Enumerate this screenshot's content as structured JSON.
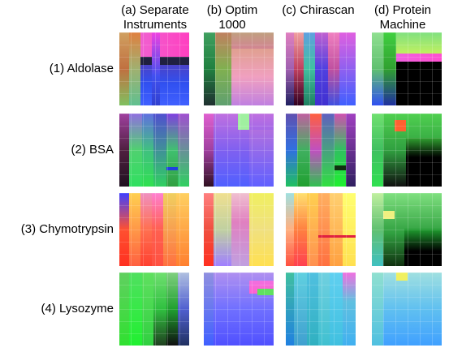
{
  "columns": [
    {
      "label_line1": "(a) Separate",
      "label_line2": "Instruments"
    },
    {
      "label_line1": "(b) Optim",
      "label_line2": "1000"
    },
    {
      "label_line1": "(c) Chirascan",
      "label_line2": ""
    },
    {
      "label_line1": "(d) Protein",
      "label_line2": "Machine"
    }
  ],
  "rows": [
    {
      "label": "(1) Aldolase"
    },
    {
      "label": "(2) BSA"
    },
    {
      "label": "(3) Chymotrypsin"
    },
    {
      "label": "(4) Lysozyme"
    }
  ]
}
